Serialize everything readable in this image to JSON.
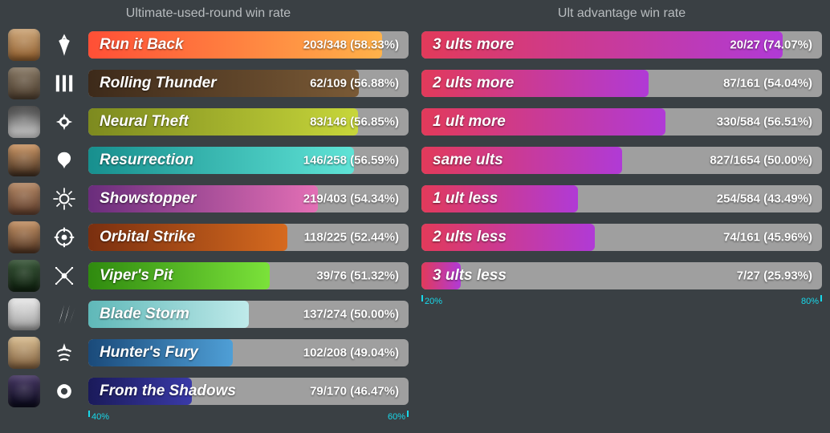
{
  "background_color": "#3a4044",
  "track_color": "#9f9f9f",
  "axis_color": "#18d8ea",
  "left": {
    "title": "Ultimate-used-round win rate",
    "axis": {
      "min": 40,
      "max": 60,
      "min_label": "40%",
      "max_label": "60%"
    },
    "rows": [
      {
        "name": "Run it Back",
        "wins": 203,
        "total": 348,
        "pct": 58.33,
        "stat": "203/348 (58.33%)",
        "fill_start": "#ff4f36",
        "fill_end": "#ffb24a",
        "avatar": "linear-gradient(180deg,#caa06f 0%,#8b5a2b 100%)",
        "icon": "phoenix"
      },
      {
        "name": "Rolling Thunder",
        "wins": 62,
        "total": 109,
        "pct": 56.88,
        "stat": "62/109 (56.88%)",
        "fill_start": "#3d2a1a",
        "fill_end": "#7a5a36",
        "avatar": "linear-gradient(180deg,#7f6f5a 0%,#4a3b2c 100%)",
        "icon": "breach"
      },
      {
        "name": "Neural Theft",
        "wins": 83,
        "total": 146,
        "pct": 56.85,
        "stat": "83/146 (56.85%)",
        "fill_start": "#7d8a1f",
        "fill_end": "#c7d63a",
        "avatar": "linear-gradient(180deg,#2f2f2f 0%,#dcdcdc 100%)",
        "icon": "cypher"
      },
      {
        "name": "Resurrection",
        "wins": 146,
        "total": 258,
        "pct": 56.59,
        "stat": "146/258 (56.59%)",
        "fill_start": "#178f8e",
        "fill_end": "#5fe3d6",
        "avatar": "linear-gradient(180deg,#c98f5a 0%,#3b2a1d 100%)",
        "icon": "sage"
      },
      {
        "name": "Showstopper",
        "wins": 219,
        "total": 403,
        "pct": 54.34,
        "stat": "219/403 (54.34%)",
        "fill_start": "#6a2d7c",
        "fill_end": "#e36fb5",
        "avatar": "linear-gradient(180deg,#b0805a 0%,#5a3a2a 100%)",
        "icon": "raze"
      },
      {
        "name": "Orbital Strike",
        "wins": 118,
        "total": 225,
        "pct": 52.44,
        "stat": "118/225 (52.44%)",
        "fill_start": "#7a2f0f",
        "fill_end": "#d66a1f",
        "avatar": "linear-gradient(180deg,#c08a5a 0%,#4a3020 100%)",
        "icon": "brim"
      },
      {
        "name": "Viper's Pit",
        "wins": 39,
        "total": 76,
        "pct": 51.32,
        "stat": "39/76 (51.32%)",
        "fill_start": "#2f8a0f",
        "fill_end": "#7be23a",
        "avatar": "linear-gradient(180deg,#2a4a2a 0%,#0f1f0f 100%)",
        "icon": "viper"
      },
      {
        "name": "Blade Storm",
        "wins": 137,
        "total": 274,
        "pct": 50.0,
        "stat": "137/274 (50.00%)",
        "fill_start": "#5fb8b8",
        "fill_end": "#bfeaea",
        "avatar": "linear-gradient(180deg,#e8e8e8 0%,#9a9a9a 100%)",
        "icon": "jett"
      },
      {
        "name": "Hunter's Fury",
        "wins": 102,
        "total": 208,
        "pct": 49.04,
        "stat": "102/208 (49.04%)",
        "fill_start": "#1a4a7a",
        "fill_end": "#4f9fd6",
        "avatar": "linear-gradient(180deg,#d6b888 0%,#7a5a3a 100%)",
        "icon": "sova"
      },
      {
        "name": "From the Shadows",
        "wins": 79,
        "total": 170,
        "pct": 46.47,
        "stat": "79/170 (46.47%)",
        "fill_start": "#1a1a5a",
        "fill_end": "#3a3aa8",
        "avatar": "linear-gradient(180deg,#3a2a5a 0%,#0a0a1a 100%)",
        "icon": "omen"
      }
    ]
  },
  "right": {
    "title": "Ult advantage win rate",
    "axis": {
      "min": 20,
      "max": 80,
      "min_label": "20%",
      "max_label": "80%"
    },
    "fill_start": "#e23a5a",
    "fill_end": "#b03ad6",
    "rows": [
      {
        "name": "3 ults more",
        "wins": 20,
        "total": 27,
        "pct": 74.07,
        "stat": "20/27 (74.07%)"
      },
      {
        "name": "2 ults more",
        "wins": 87,
        "total": 161,
        "pct": 54.04,
        "stat": "87/161 (54.04%)"
      },
      {
        "name": "1 ult more",
        "wins": 330,
        "total": 584,
        "pct": 56.51,
        "stat": "330/584 (56.51%)"
      },
      {
        "name": "same ults",
        "wins": 827,
        "total": 1654,
        "pct": 50.0,
        "stat": "827/1654 (50.00%)"
      },
      {
        "name": "1 ult less",
        "wins": 254,
        "total": 584,
        "pct": 43.49,
        "stat": "254/584 (43.49%)"
      },
      {
        "name": "2 ults less",
        "wins": 74,
        "total": 161,
        "pct": 45.96,
        "stat": "74/161 (45.96%)"
      },
      {
        "name": "3 ults less",
        "wins": 7,
        "total": 27,
        "pct": 25.93,
        "stat": "7/27 (25.93%)"
      }
    ]
  }
}
